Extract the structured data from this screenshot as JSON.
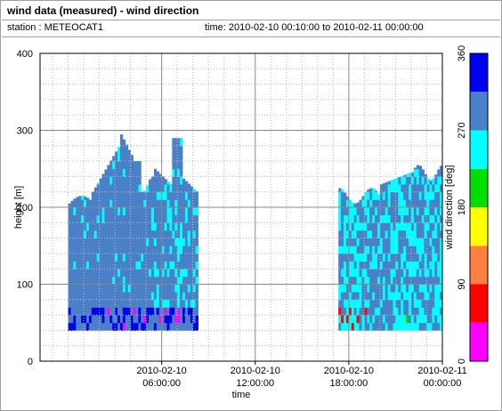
{
  "header": {
    "title": "wind data (measured) - wind direction",
    "station": "station : METEOCAT1",
    "time_range": "time: 2010-02-10 00:10:00 to 2010-02-11 00:00:00"
  },
  "chart_data": {
    "type": "heatmap",
    "title": "wind data (measured) - wind direction",
    "xlabel": "time",
    "ylabel": "height [m]",
    "colorbar_label": "wind direction [deg]",
    "xlim_hours": [
      -1.8,
      24
    ],
    "ylim": [
      0,
      400
    ],
    "x_ticks": [
      {
        "hours": 6,
        "line1": "2010-02-10",
        "line2": "06:00:00"
      },
      {
        "hours": 12,
        "line1": "2010-02-10",
        "line2": "12:00:00"
      },
      {
        "hours": 18,
        "line1": "2010-02-10",
        "line2": "18:00:00"
      },
      {
        "hours": 24,
        "line1": "2010-02-11",
        "line2": "00:00:00"
      }
    ],
    "y_ticks": [
      100,
      200,
      300,
      400
    ],
    "colorbar": {
      "range": [
        0,
        360
      ],
      "ticks": [
        0,
        90,
        180,
        270,
        360
      ],
      "bins": [
        {
          "from": 0,
          "to": 45,
          "color": "#ff00ff"
        },
        {
          "from": 45,
          "to": 90,
          "color": "#ff0000"
        },
        {
          "from": 90,
          "to": 135,
          "color": "#ff8040"
        },
        {
          "from": 135,
          "to": 180,
          "color": "#ffff00"
        },
        {
          "from": 180,
          "to": 225,
          "color": "#00dd00"
        },
        {
          "from": 225,
          "to": 270,
          "color": "#00ffff"
        },
        {
          "from": 270,
          "to": 315,
          "color": "#4a80c8"
        },
        {
          "from": 315,
          "to": 360,
          "color": "#0000ee"
        }
      ]
    },
    "data_gap_hours": [
      8.2,
      17.3
    ],
    "grid": true,
    "series": [
      {
        "segment": "0:00-3:00",
        "typical_direction": 290,
        "top_height_m": 210
      },
      {
        "segment": "3:00-6:00",
        "typical_direction": 285,
        "top_height_m": 320
      },
      {
        "segment": "6:00-8:20",
        "typical_direction": 260,
        "top_height_m": 300
      },
      {
        "segment": "17:20-20:00",
        "typical_direction": 255,
        "top_height_m": 230
      },
      {
        "segment": "20:00-24:00",
        "typical_direction": 270,
        "top_height_m": 250
      }
    ]
  }
}
